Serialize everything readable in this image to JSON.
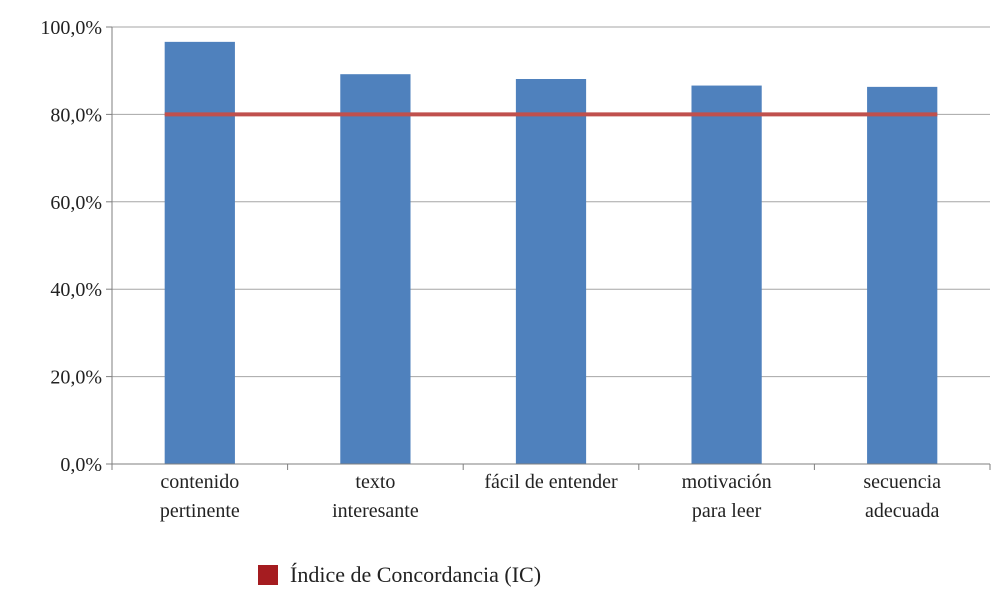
{
  "chart_data": {
    "type": "bar",
    "categories": [
      [
        "contenido",
        "pertinente"
      ],
      [
        "texto",
        "interesante"
      ],
      [
        "fácil de entender"
      ],
      [
        "motivación",
        "para leer"
      ],
      [
        "secuencia",
        "adecuada"
      ]
    ],
    "values": [
      96.6,
      89.2,
      88.1,
      86.6,
      86.3
    ],
    "reference_line": {
      "name": "Índice de Concordancia (IC)",
      "value": 80.0
    },
    "ylim": [
      0,
      100
    ],
    "yticks": [
      0,
      20,
      40,
      60,
      80,
      100
    ],
    "ytick_labels": [
      "0,0%",
      "20,0%",
      "40,0%",
      "60,0%",
      "80,0%",
      "100,0%"
    ],
    "grid": true,
    "legend": "bottom",
    "title": "",
    "xlabel": "",
    "ylabel": "",
    "colors": {
      "bar": "#4f81bd",
      "reference_line": "#c0504d",
      "legend_swatch": "#a51c20",
      "grid": "#a6a6a6",
      "axis": "#7f7f7f"
    }
  }
}
